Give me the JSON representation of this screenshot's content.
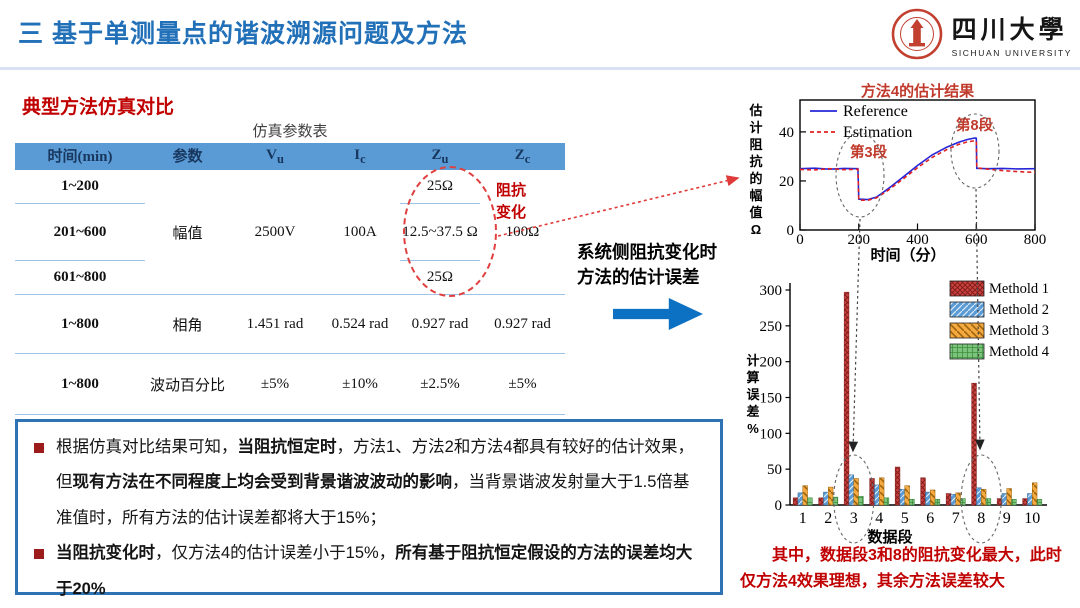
{
  "header": {
    "title": "三 基于单测量点的谐波溯源问题及方法",
    "logo_cn": "四川大學",
    "logo_en": "SICHUAN UNIVERSITY"
  },
  "section": {
    "heading": "典型方法仿真对比"
  },
  "param_table": {
    "caption": "仿真参数表",
    "headers": [
      {
        "main": "时间(min)",
        "sub": ""
      },
      {
        "main": "参数",
        "sub": ""
      },
      {
        "main": "V",
        "sub": "u"
      },
      {
        "main": "I",
        "sub": "c"
      },
      {
        "main": "Z",
        "sub": "u"
      },
      {
        "main": "Z",
        "sub": "c"
      }
    ],
    "amp_rows": {
      "times": [
        "1~200",
        "201~600",
        "601~800"
      ],
      "param": "幅值",
      "vu": "2500V",
      "ic": "100A",
      "zu": [
        "25Ω",
        "12.5~37.5 Ω",
        "25Ω"
      ],
      "zc": "100Ω"
    },
    "phase_row": {
      "time": "1~800",
      "param": "相角",
      "vu": "1.451 rad",
      "ic": "0.524 rad",
      "zu": "0.927 rad",
      "zc": "0.927 rad"
    },
    "fluct_row": {
      "time": "1~800",
      "param": "波动百分比",
      "vu": "±5%",
      "ic": "±10%",
      "zu": "±2.5%",
      "zc": "±5%"
    },
    "annotation": "阻抗变化"
  },
  "middle": {
    "line1": "系统侧阻抗变化时",
    "line2": "方法的估计误差"
  },
  "chart_data": [
    {
      "type": "line",
      "title": "方法4的估计结果",
      "xlabel": "时间（分）",
      "ylabel": "估计阻抗的幅值Ω",
      "xlim": [
        0,
        800
      ],
      "ylim": [
        0,
        53
      ],
      "xticks": [
        0,
        200,
        400,
        600,
        800
      ],
      "yticks": [
        0,
        20,
        40
      ],
      "legend_position": "top-left",
      "annotations": [
        "第3段",
        "第8段"
      ],
      "series": [
        {
          "name": "Reference",
          "color": "#2626D8",
          "style": "solid",
          "points": [
            [
              0,
              25
            ],
            [
              50,
              25.2
            ],
            [
              100,
              24.8
            ],
            [
              150,
              25.1
            ],
            [
              197,
              25
            ],
            [
              200,
              12.6
            ],
            [
              230,
              12.4
            ],
            [
              260,
              13.4
            ],
            [
              300,
              16.8
            ],
            [
              350,
              21.5
            ],
            [
              400,
              26.3
            ],
            [
              450,
              30.6
            ],
            [
              500,
              33.8
            ],
            [
              540,
              35.8
            ],
            [
              570,
              36.9
            ],
            [
              596,
              37.5
            ],
            [
              600,
              37.4
            ],
            [
              602,
              25.1
            ],
            [
              640,
              25
            ],
            [
              690,
              25.1
            ],
            [
              740,
              24.9
            ],
            [
              800,
              25
            ]
          ]
        },
        {
          "name": "Estimation",
          "color": "#E02222",
          "style": "dashed",
          "points": [
            [
              0,
              24.7
            ],
            [
              50,
              24.5
            ],
            [
              100,
              25
            ],
            [
              150,
              24.6
            ],
            [
              197,
              24.8
            ],
            [
              200,
              12.2
            ],
            [
              230,
              12.1
            ],
            [
              260,
              13.1
            ],
            [
              300,
              16.2
            ],
            [
              350,
              20.7
            ],
            [
              400,
              25.4
            ],
            [
              450,
              29.6
            ],
            [
              500,
              32.8
            ],
            [
              540,
              34.9
            ],
            [
              570,
              35.9
            ],
            [
              596,
              36.4
            ],
            [
              600,
              36.3
            ],
            [
              602,
              25.3
            ],
            [
              640,
              24.8
            ],
            [
              690,
              24.2
            ],
            [
              740,
              23.8
            ],
            [
              800,
              23.5
            ]
          ]
        }
      ]
    },
    {
      "type": "bar",
      "xlabel": "数据段",
      "ylabel": "计算误差%",
      "categories": [
        "1",
        "2",
        "3",
        "4",
        "5",
        "6",
        "7",
        "8",
        "9",
        "10"
      ],
      "ylim": [
        0,
        320
      ],
      "yticks": [
        0,
        50,
        100,
        150,
        200,
        250,
        300
      ],
      "legend_position": "top-right",
      "series": [
        {
          "name": "Methold 1",
          "color": "#C8413D",
          "edge": "#7E1B1B",
          "values": [
            10,
            10,
            297,
            37,
            53,
            38,
            16,
            170,
            9,
            9
          ]
        },
        {
          "name": "Methold 2",
          "color": "#5B9BD5",
          "edge": "#2E5F8F",
          "values": [
            17,
            18,
            42,
            28,
            22,
            18,
            15,
            24,
            16,
            16
          ]
        },
        {
          "name": "Methold 3",
          "color": "#F5A93F",
          "edge": "#9C6510",
          "values": [
            27,
            25,
            37,
            38,
            27,
            21,
            17,
            22,
            23,
            31
          ]
        },
        {
          "name": "Methold 4",
          "color": "#7CC47C",
          "edge": "#2F7D32",
          "values": [
            10,
            11,
            12,
            10,
            8,
            8,
            9,
            9,
            8,
            8
          ]
        }
      ]
    }
  ],
  "notes": {
    "bullets": [
      [
        {
          "t": "根据仿真对比结果可知，",
          "b": false
        },
        {
          "t": "当阻抗恒定时",
          "b": true
        },
        {
          "t": "，方法1、方法2和方法4都具有较好的估计效果，但",
          "b": false
        },
        {
          "t": "现有方法在不同程度上均会受到背景谐波波动的影响",
          "b": true
        },
        {
          "t": "，当背景谐波发射量大于1.5倍基准值时，所有方法的估计误差都将大于15%；",
          "b": false
        }
      ],
      [
        {
          "t": "当阻抗变化时",
          "b": true
        },
        {
          "t": "，仅方法4的估计误差小于15%，",
          "b": false
        },
        {
          "t": "所有基于阻抗恒定假设的方法的误差均大于20%",
          "b": true
        }
      ]
    ]
  },
  "conclusion": {
    "text": "其中，数据段3和8的阻抗变化最大，此时仅方法4效果理想，其余方法误差较大"
  }
}
